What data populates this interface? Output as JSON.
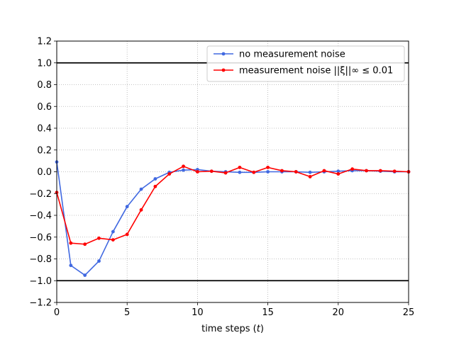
{
  "chart_data": {
    "type": "line",
    "title": "",
    "xlabel": "time steps (t)",
    "ylabel": "",
    "xlim": [
      0,
      25
    ],
    "ylim": [
      -1.2,
      1.2
    ],
    "xticks": [
      0,
      5,
      10,
      15,
      20,
      25
    ],
    "xtick_labels": [
      "0",
      "5",
      "10",
      "15",
      "20",
      "25"
    ],
    "yticks": [
      -1.2,
      -1.0,
      -0.8,
      -0.6,
      -0.4,
      -0.2,
      0.0,
      0.2,
      0.4,
      0.6,
      0.8,
      1.0,
      1.2
    ],
    "ytick_labels": [
      "−1.2",
      "−1.0",
      "−0.8",
      "−0.6",
      "−0.4",
      "−0.2",
      "0.0",
      "0.2",
      "0.4",
      "0.6",
      "0.8",
      "1.0",
      "1.2"
    ],
    "grid": true,
    "legend_position": "top-right",
    "reference_lines": [
      1.0,
      -1.0
    ],
    "reference_line_color": "#000000",
    "x": [
      0,
      1,
      2,
      3,
      4,
      5,
      6,
      7,
      8,
      9,
      10,
      11,
      12,
      13,
      14,
      15,
      16,
      17,
      18,
      19,
      20,
      21,
      22,
      23,
      24,
      25
    ],
    "series": [
      {
        "name": "no measurement noise",
        "color": "#4169e1",
        "values": [
          0.09,
          -0.86,
          -0.95,
          -0.82,
          -0.55,
          -0.32,
          -0.16,
          -0.065,
          -0.005,
          0.015,
          0.02,
          0.005,
          0.0,
          -0.005,
          -0.005,
          0.0,
          0.0,
          0.0,
          -0.005,
          0.0,
          0.005,
          0.01,
          0.01,
          0.005,
          0.0,
          0.0
        ]
      },
      {
        "name": "measurement noise ||ξ||∞ ≤ 0.01",
        "color": "#ff0000",
        "values": [
          -0.19,
          -0.655,
          -0.665,
          -0.61,
          -0.625,
          -0.575,
          -0.35,
          -0.135,
          -0.02,
          0.05,
          0.0,
          0.005,
          -0.01,
          0.04,
          -0.005,
          0.04,
          0.01,
          0.0,
          -0.045,
          0.01,
          -0.02,
          0.025,
          0.01,
          0.01,
          0.005,
          0.0
        ]
      }
    ]
  }
}
